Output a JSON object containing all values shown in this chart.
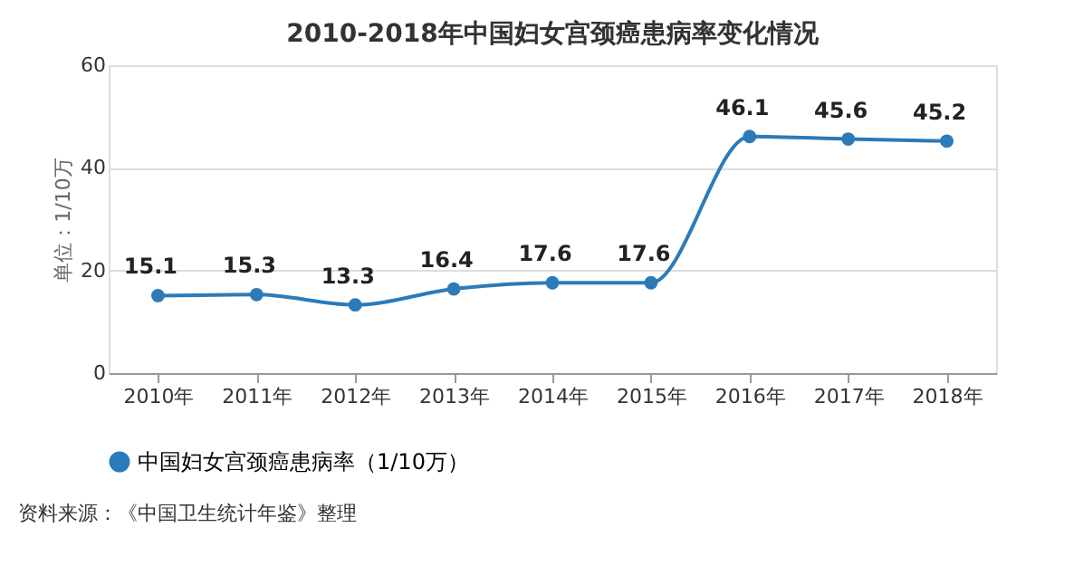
{
  "chart_data": {
    "type": "line",
    "title": "2010-2018年中国妇女宫颈癌患病率变化情况",
    "ylabel": "单位：1/10万",
    "categories": [
      "2010年",
      "2011年",
      "2012年",
      "2013年",
      "2014年",
      "2015年",
      "2016年",
      "2017年",
      "2018年"
    ],
    "series": [
      {
        "name": "中国妇女宫颈癌患病率（1/10万）",
        "color": "#2b7bba",
        "values": [
          15.1,
          15.3,
          13.3,
          16.4,
          17.6,
          17.6,
          46.1,
          45.6,
          45.2
        ]
      }
    ],
    "ylim": [
      0,
      60
    ],
    "yticks": [
      0,
      20,
      40,
      60
    ],
    "grid": "y",
    "legend": "bottom",
    "marker": "circle",
    "line_style": "solid",
    "data_labels": true,
    "annotations": [
      "资料来源：《中国卫生统计年鉴》整理"
    ]
  }
}
